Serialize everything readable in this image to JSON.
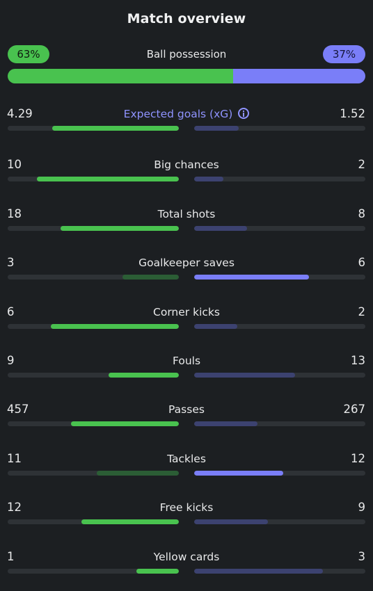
{
  "header": {
    "title": "Match overview"
  },
  "possession": {
    "label": "Ball possession",
    "home_text": "63%",
    "away_text": "37%",
    "home_pct": 63,
    "away_pct": 37
  },
  "colors": {
    "home_win": "#49c24f",
    "home_lose": "#2b5d35",
    "away_win": "#7a7ef8",
    "away_lose": "#3c4270",
    "track": "#2e3236",
    "background": "#1c1f22"
  },
  "stats": [
    {
      "label": "Expected goals (xG)",
      "home": "4.29",
      "away": "1.52",
      "home_fill": 0.74,
      "away_fill": 0.26,
      "winner": "home",
      "info_icon": "info-icon"
    },
    {
      "label": "Big chances",
      "home": "10",
      "away": "2",
      "home_fill": 0.83,
      "away_fill": 0.17,
      "winner": "home"
    },
    {
      "label": "Total shots",
      "home": "18",
      "away": "8",
      "home_fill": 0.69,
      "away_fill": 0.31,
      "winner": "home"
    },
    {
      "label": "Goalkeeper saves",
      "home": "3",
      "away": "6",
      "home_fill": 0.33,
      "away_fill": 0.67,
      "winner": "away"
    },
    {
      "label": "Corner kicks",
      "home": "6",
      "away": "2",
      "home_fill": 0.75,
      "away_fill": 0.25,
      "winner": "home"
    },
    {
      "label": "Fouls",
      "home": "9",
      "away": "13",
      "home_fill": 0.41,
      "away_fill": 0.59,
      "winner": "home"
    },
    {
      "label": "Passes",
      "home": "457",
      "away": "267",
      "home_fill": 0.63,
      "away_fill": 0.37,
      "winner": "home"
    },
    {
      "label": "Tackles",
      "home": "11",
      "away": "12",
      "home_fill": 0.48,
      "away_fill": 0.52,
      "winner": "away"
    },
    {
      "label": "Free kicks",
      "home": "12",
      "away": "9",
      "home_fill": 0.57,
      "away_fill": 0.43,
      "winner": "home"
    },
    {
      "label": "Yellow cards",
      "home": "1",
      "away": "3",
      "home_fill": 0.25,
      "away_fill": 0.75,
      "winner": "home"
    }
  ]
}
